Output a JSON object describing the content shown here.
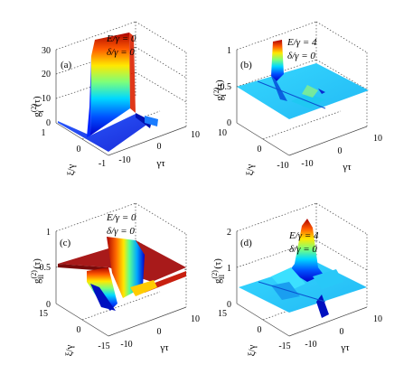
{
  "chart_data": [
    {
      "panel": "(a)",
      "type": "surface",
      "annotations": [
        "E/γ = 0",
        "δ/γ = 0"
      ],
      "zlabel": "g²(τ) [sub I]",
      "zlabel_base": "g",
      "zlabel_sup": "(2)",
      "zlabel_sub": "I",
      "zlabel_arg": "(τ)",
      "xlabel": "γτ",
      "ylabel": "ξ/γ",
      "z_ticks": [
        "0",
        "10",
        "20",
        "30"
      ],
      "x_ticks": [
        "-10",
        "0",
        "10"
      ],
      "y_ticks": [
        "-1",
        "0",
        "1"
      ],
      "zlim": [
        0,
        30
      ],
      "xlim": [
        -10,
        10
      ],
      "ylim": [
        -1,
        1
      ],
      "grid": true,
      "colormap": "jet",
      "description_values": {
        "peak": 30,
        "baseline": 0
      }
    },
    {
      "panel": "(b)",
      "type": "surface",
      "annotations": [
        "E/γ = 4",
        "δ/γ = 0"
      ],
      "zlabel_base": "g",
      "zlabel_sup": "(2)",
      "zlabel_sub": "I",
      "zlabel_arg": "(τ)",
      "xlabel": "γτ",
      "ylabel": "ξ/γ",
      "z_ticks": [
        "0",
        "0.5",
        "1"
      ],
      "x_ticks": [
        "-10",
        "0",
        "10"
      ],
      "y_ticks": [
        "-10",
        "0",
        "10"
      ],
      "zlim": [
        0,
        1
      ],
      "xlim": [
        -10,
        10
      ],
      "ylim": [
        -10,
        10
      ],
      "grid": true,
      "colormap": "jet",
      "description_values": {
        "peak": 1,
        "baseline": 0.5
      }
    },
    {
      "panel": "(c)",
      "type": "surface",
      "annotations": [
        "E/γ = 0",
        "δ/γ = 0"
      ],
      "zlabel_base": "g",
      "zlabel_sup": "(2)",
      "zlabel_sub": "II",
      "zlabel_arg": "(τ)",
      "xlabel": "γτ",
      "ylabel": "ξ/γ",
      "z_ticks": [
        "0",
        "0.5",
        "1"
      ],
      "x_ticks": [
        "-10",
        "0",
        "10"
      ],
      "y_ticks": [
        "-15",
        "0",
        "15"
      ],
      "zlim": [
        0,
        1
      ],
      "xlim": [
        -10,
        10
      ],
      "ylim": [
        -15,
        15
      ],
      "grid": true,
      "colormap": "jet",
      "description_values": {
        "plateau": 0.5,
        "minimum": 0
      }
    },
    {
      "panel": "(d)",
      "type": "surface",
      "annotations": [
        "E/γ = 4",
        "δ/γ = 0"
      ],
      "zlabel_base": "g",
      "zlabel_sup": "(2)",
      "zlabel_sub": "II",
      "zlabel_arg": "(τ)",
      "xlabel": "γτ",
      "ylabel": "ξ/γ",
      "z_ticks": [
        "0",
        "1",
        "2"
      ],
      "x_ticks": [
        "-10",
        "0",
        "10"
      ],
      "y_ticks": [
        "-15",
        "0",
        "15"
      ],
      "zlim": [
        0,
        2
      ],
      "xlim": [
        -10,
        10
      ],
      "ylim": [
        -15,
        15
      ],
      "grid": true,
      "colormap": "jet",
      "description_values": {
        "peak": 2,
        "baseline": 0.5
      }
    }
  ]
}
